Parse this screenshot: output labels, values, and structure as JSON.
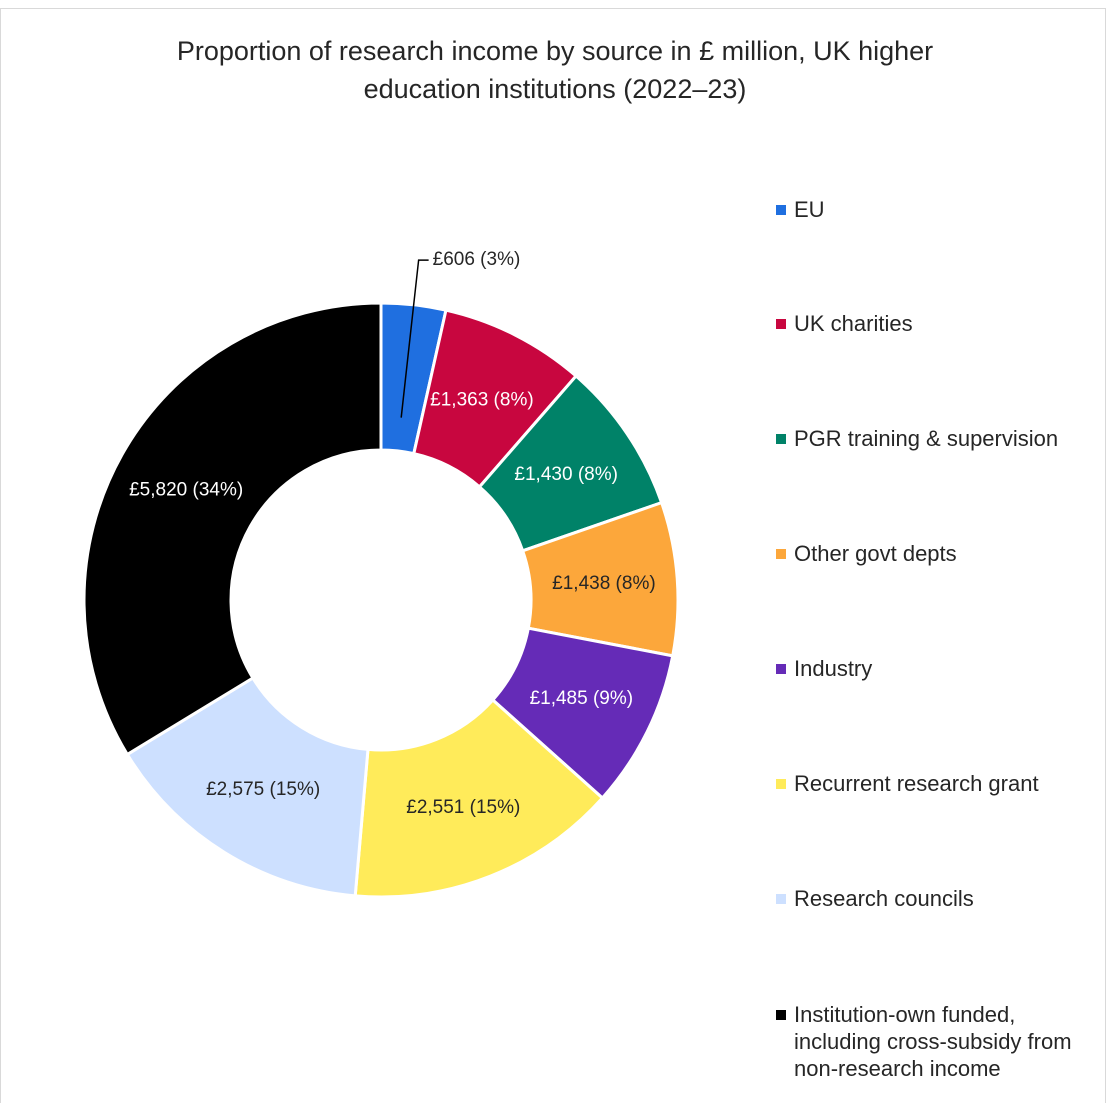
{
  "chart_data": {
    "type": "pie",
    "donut": true,
    "title": "Proportion of research income by source in £ million, UK higher education institutions (2022–23)",
    "title_lines": [
      "Proportion of research income by source in £ million, UK higher",
      "education institutions (2022–23)"
    ],
    "legend_position": "right",
    "unit": "£ million",
    "slices": [
      {
        "name": "EU",
        "value": 606,
        "percent": 3,
        "label": "£606 (3%)",
        "color": "#1f6fe0",
        "label_color": "#262626",
        "label_outside": true
      },
      {
        "name": "UK charities",
        "value": 1363,
        "percent": 8,
        "label": "£1,363 (8%)",
        "color": "#c8063f",
        "label_color": "#ffffff"
      },
      {
        "name": "PGR training & supervision",
        "value": 1430,
        "percent": 8,
        "label": "£1,430 (8%)",
        "color": "#008268",
        "label_color": "#ffffff"
      },
      {
        "name": "Other govt depts",
        "value": 1438,
        "percent": 8,
        "label": "£1,438 (8%)",
        "color": "#fca73b",
        "label_color": "#262626"
      },
      {
        "name": "Industry",
        "value": 1485,
        "percent": 9,
        "label": "£1,485 (9%)",
        "color": "#652bb7",
        "label_color": "#ffffff"
      },
      {
        "name": "Recurrent research grant",
        "value": 2551,
        "percent": 15,
        "label": "£2,551 (15%)",
        "color": "#ffeb5a",
        "label_color": "#262626"
      },
      {
        "name": "Research councils",
        "value": 2575,
        "percent": 15,
        "label": "£2,575 (15%)",
        "color": "#cde0ff",
        "label_color": "#262626"
      },
      {
        "name": "Institution-own funded, including cross-subsidy from non-research income",
        "legend_text": "Institution-own funded,\nincluding cross-subsidy from\nnon-research income",
        "value": 5820,
        "percent": 34,
        "label": "£5,820 (34%)",
        "color": "#000000",
        "label_color": "#ffffff"
      }
    ]
  }
}
